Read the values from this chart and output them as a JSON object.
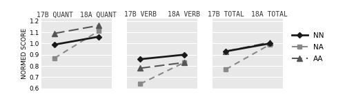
{
  "panels": [
    {
      "title_left": "17B QUANT",
      "title_right": "18A QUANT",
      "series": {
        "NN": [
          0.99,
          1.06
        ],
        "NA": [
          0.87,
          1.11
        ],
        "AA": [
          1.09,
          1.16
        ]
      }
    },
    {
      "title_left": "17B VERB",
      "title_right": "18A VERB",
      "series": {
        "NN": [
          0.86,
          0.9
        ],
        "NA": [
          0.64,
          0.83
        ],
        "AA": [
          0.78,
          0.83
        ]
      }
    },
    {
      "title_left": "17B TOTAL",
      "title_right": "18A TOTAL",
      "series": {
        "NN": [
          0.93,
          1.0
        ],
        "NA": [
          0.77,
          0.99
        ],
        "AA": [
          0.93,
          1.01
        ]
      }
    }
  ],
  "ylim": [
    0.6,
    1.22
  ],
  "yticks": [
    0.6,
    0.7,
    0.8,
    0.9,
    1.0,
    1.1,
    1.2
  ],
  "ylabel": "NORMED SCORE",
  "x_positions": [
    0,
    1
  ],
  "line_styles": {
    "NN": {
      "color": "#1a1a1a",
      "linestyle": "-",
      "marker": "D",
      "markersize": 4.5,
      "linewidth": 2.0
    },
    "NA": {
      "color": "#888888",
      "linestyle": "--",
      "marker": "s",
      "markersize": 5.0,
      "linewidth": 1.5,
      "dashes": [
        4,
        3
      ]
    },
    "AA": {
      "color": "#555555",
      "linestyle": "--",
      "marker": "^",
      "markersize": 6.0,
      "linewidth": 1.5,
      "dashes": [
        7,
        3
      ]
    }
  },
  "legend_labels": [
    "NN",
    "NA",
    "AA"
  ],
  "title_fontsize": 7.0,
  "tick_fontsize": 6.5,
  "ylabel_fontsize": 6.5,
  "legend_fontsize": 7.5,
  "background_color": "#e8e8e8"
}
